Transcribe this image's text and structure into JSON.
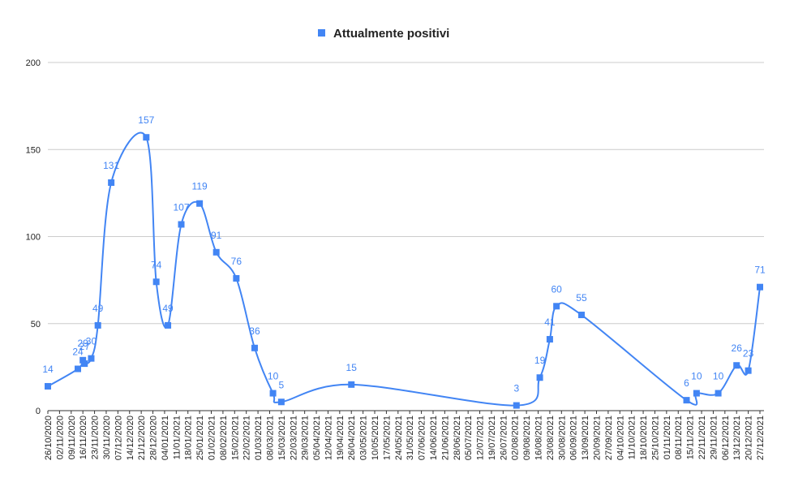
{
  "chart_data": {
    "type": "line",
    "legend": "top",
    "series": [
      {
        "name": "Attualmente positivi",
        "color": "#4285f4",
        "x": [
          "2020-10-26",
          "2020-11-13",
          "2020-11-16",
          "2020-11-17",
          "2020-11-21",
          "2020-11-25",
          "2020-12-03",
          "2020-12-24",
          "2020-12-30",
          "2021-01-06",
          "2021-01-14",
          "2021-01-25",
          "2021-02-04",
          "2021-02-16",
          "2021-02-27",
          "2021-03-10",
          "2021-03-15",
          "2021-04-26",
          "2021-08-03",
          "2021-08-17",
          "2021-08-23",
          "2021-08-27",
          "2021-09-11",
          "2021-11-13",
          "2021-11-19",
          "2021-12-02",
          "2021-12-13",
          "2021-12-20",
          "2021-12-27"
        ],
        "values": [
          14,
          24,
          29,
          27,
          30,
          49,
          131,
          157,
          74,
          49,
          107,
          119,
          91,
          76,
          36,
          10,
          5,
          15,
          3,
          19,
          41,
          60,
          55,
          6,
          10,
          10,
          26,
          23,
          71
        ]
      }
    ],
    "xlim": [
      "2020-10-26",
      "2021-12-27"
    ],
    "xticks": [
      {
        "value": "2020-10-26",
        "label": "26/10/2020"
      },
      {
        "value": "2020-11-02",
        "label": "02/11/2020"
      },
      {
        "value": "2020-11-09",
        "label": "09/11/2020"
      },
      {
        "value": "2020-11-16",
        "label": "16/11/2020"
      },
      {
        "value": "2020-11-23",
        "label": "23/11/2020"
      },
      {
        "value": "2020-11-30",
        "label": "30/11/2020"
      },
      {
        "value": "2020-12-07",
        "label": "07/12/2020"
      },
      {
        "value": "2020-12-14",
        "label": "14/12/2020"
      },
      {
        "value": "2020-12-21",
        "label": "21/12/2020"
      },
      {
        "value": "2020-12-28",
        "label": "28/12/2020"
      },
      {
        "value": "2021-01-04",
        "label": "04/01/2021"
      },
      {
        "value": "2021-01-11",
        "label": "11/01/2021"
      },
      {
        "value": "2021-01-18",
        "label": "18/01/2021"
      },
      {
        "value": "2021-01-25",
        "label": "25/01/2021"
      },
      {
        "value": "2021-02-01",
        "label": "01/02/2021"
      },
      {
        "value": "2021-02-08",
        "label": "08/02/2021"
      },
      {
        "value": "2021-02-15",
        "label": "15/02/2021"
      },
      {
        "value": "2021-02-22",
        "label": "22/02/2021"
      },
      {
        "value": "2021-03-01",
        "label": "01/03/2021"
      },
      {
        "value": "2021-03-08",
        "label": "08/03/2021"
      },
      {
        "value": "2021-03-15",
        "label": "15/03/2021"
      },
      {
        "value": "2021-03-22",
        "label": "22/03/2021"
      },
      {
        "value": "2021-03-29",
        "label": "29/03/2021"
      },
      {
        "value": "2021-04-05",
        "label": "05/04/2021"
      },
      {
        "value": "2021-04-12",
        "label": "12/04/2021"
      },
      {
        "value": "2021-04-19",
        "label": "19/04/2021"
      },
      {
        "value": "2021-04-26",
        "label": "26/04/2021"
      },
      {
        "value": "2021-05-03",
        "label": "03/05/2021"
      },
      {
        "value": "2021-05-10",
        "label": "10/05/2021"
      },
      {
        "value": "2021-05-17",
        "label": "17/05/2021"
      },
      {
        "value": "2021-05-24",
        "label": "24/05/2021"
      },
      {
        "value": "2021-05-31",
        "label": "31/05/2021"
      },
      {
        "value": "2021-06-07",
        "label": "07/06/2021"
      },
      {
        "value": "2021-06-14",
        "label": "14/06/2021"
      },
      {
        "value": "2021-06-21",
        "label": "21/06/2021"
      },
      {
        "value": "2021-06-28",
        "label": "28/06/2021"
      },
      {
        "value": "2021-07-05",
        "label": "05/07/2021"
      },
      {
        "value": "2021-07-12",
        "label": "12/07/2021"
      },
      {
        "value": "2021-07-19",
        "label": "19/07/2021"
      },
      {
        "value": "2021-07-26",
        "label": "26/07/2021"
      },
      {
        "value": "2021-08-02",
        "label": "02/08/2021"
      },
      {
        "value": "2021-08-09",
        "label": "09/08/2021"
      },
      {
        "value": "2021-08-16",
        "label": "16/08/2021"
      },
      {
        "value": "2021-08-23",
        "label": "23/08/2021"
      },
      {
        "value": "2021-08-30",
        "label": "30/08/2021"
      },
      {
        "value": "2021-09-06",
        "label": "06/09/2021"
      },
      {
        "value": "2021-09-13",
        "label": "13/09/2021"
      },
      {
        "value": "2021-09-20",
        "label": "20/09/2021"
      },
      {
        "value": "2021-09-27",
        "label": "27/09/2021"
      },
      {
        "value": "2021-10-04",
        "label": "04/10/2021"
      },
      {
        "value": "2021-10-11",
        "label": "11/10/2021"
      },
      {
        "value": "2021-10-18",
        "label": "18/10/2021"
      },
      {
        "value": "2021-10-25",
        "label": "25/10/2021"
      },
      {
        "value": "2021-11-01",
        "label": "01/11/2021"
      },
      {
        "value": "2021-11-08",
        "label": "08/11/2021"
      },
      {
        "value": "2021-11-15",
        "label": "15/11/2021"
      },
      {
        "value": "2021-11-22",
        "label": "22/11/2021"
      },
      {
        "value": "2021-11-29",
        "label": "29/11/2021"
      },
      {
        "value": "2021-12-06",
        "label": "06/12/2021"
      },
      {
        "value": "2021-12-13",
        "label": "13/12/2021"
      },
      {
        "value": "2021-12-20",
        "label": "20/12/2021"
      },
      {
        "value": "2021-12-27",
        "label": "27/12/2021"
      }
    ],
    "ylim": [
      0,
      200
    ],
    "yticks": [
      0,
      50,
      100,
      150,
      200
    ],
    "grid": true
  }
}
